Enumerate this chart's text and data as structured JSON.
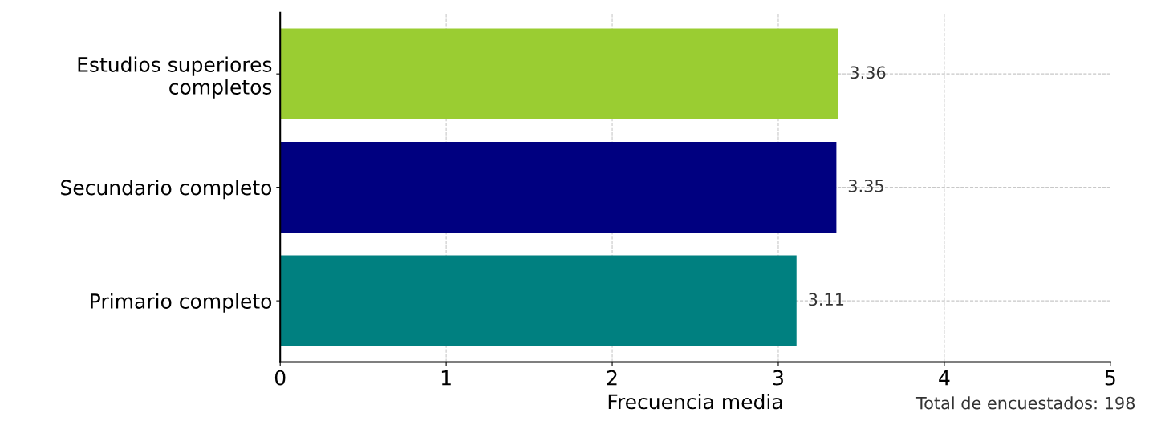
{
  "chart_data": {
    "type": "bar",
    "orientation": "horizontal",
    "xlabel": "Frecuencia media",
    "categories": [
      "Estudios superiores\ncompletos",
      "Secundario completo",
      "Primario completo"
    ],
    "values": [
      3.36,
      3.35,
      3.11
    ],
    "colors": [
      "#9acd32",
      "#000080",
      "#008080"
    ],
    "xlim": [
      0,
      5
    ],
    "xticks": [
      0,
      1,
      2,
      3,
      4,
      5
    ],
    "grid": true,
    "data_labels": true,
    "annotations": [
      "Total de encuestados: 198"
    ]
  }
}
